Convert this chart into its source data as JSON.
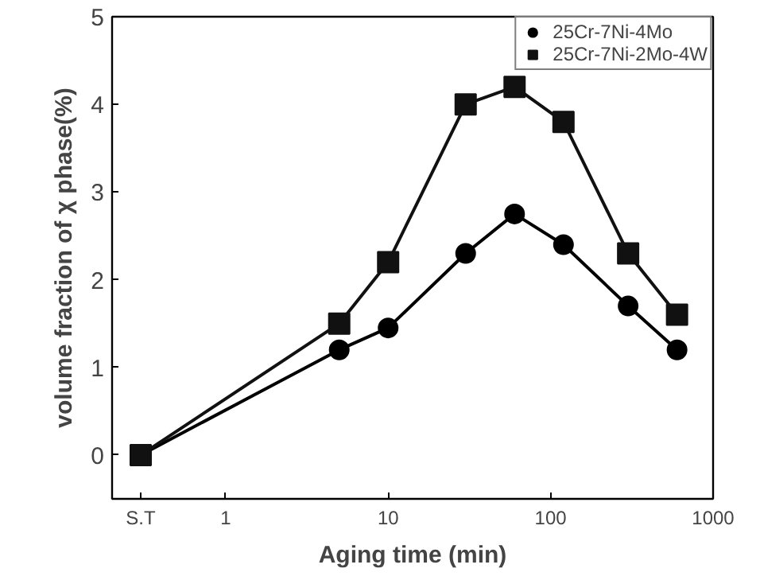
{
  "chart_data": {
    "type": "line",
    "xlabel": "Aging time (min)",
    "ylabel": "volume fraction of χ phase(%)",
    "log": "x",
    "xlim": [
      0.2,
      1000
    ],
    "xticks": [
      {
        "value": 0.3,
        "label": "S.T"
      },
      1,
      10,
      100,
      1000
    ],
    "ylim": [
      -0.5,
      5
    ],
    "yticks": [
      0,
      1,
      2,
      3,
      4,
      5
    ],
    "grid": false,
    "legend": "top right",
    "x": [
      0.3,
      5,
      10,
      30,
      60,
      120,
      300,
      600
    ],
    "series": [
      {
        "name": "25Cr-7Ni-4Mo",
        "color": "#000000",
        "marker": "circle",
        "values": [
          0,
          1.2,
          1.45,
          2.3,
          2.75,
          2.4,
          1.7,
          1.2
        ]
      },
      {
        "name": "25Cr-7Ni-2Mo-4W",
        "color": "#111111",
        "marker": "square",
        "values": [
          0,
          1.5,
          2.2,
          4.0,
          4.2,
          3.8,
          2.3,
          1.6
        ]
      }
    ]
  }
}
